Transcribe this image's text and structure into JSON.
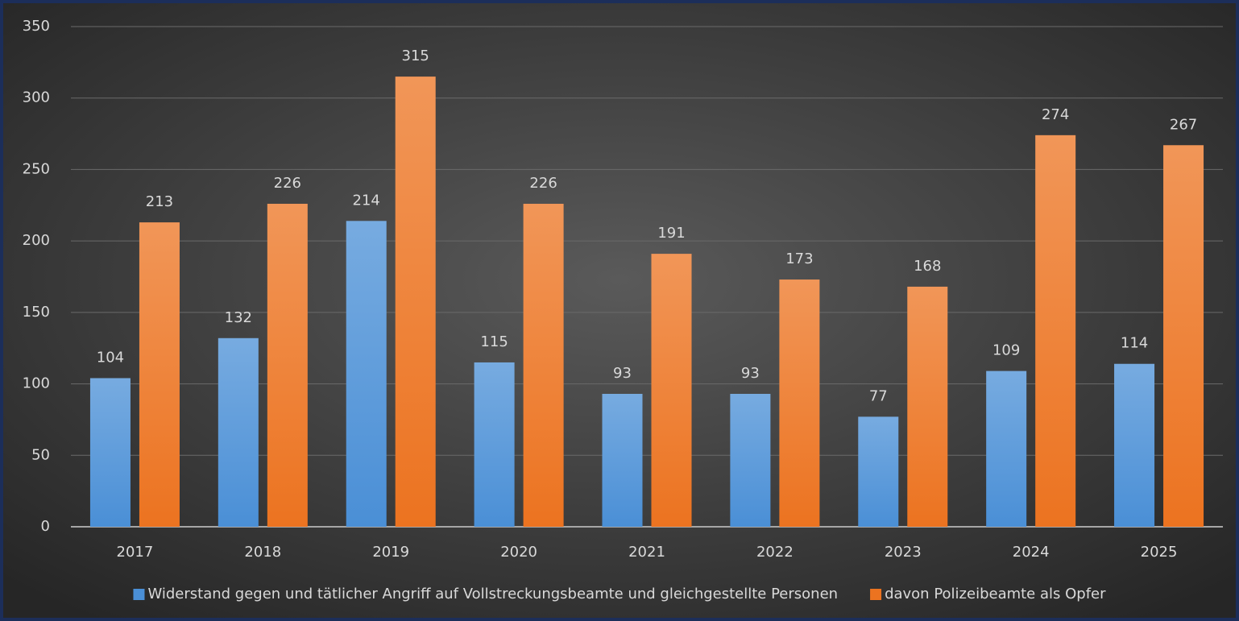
{
  "chart_data": {
    "type": "bar",
    "categories": [
      "2017",
      "2018",
      "2019",
      "2020",
      "2021",
      "2022",
      "2023",
      "2024",
      "2025"
    ],
    "series": [
      {
        "name": "Widerstand gegen und tätlicher Angriff auf Vollstreckungsbeamte und gleichgestellte Personen",
        "color": "#4a8fd6",
        "values": [
          104,
          132,
          214,
          115,
          93,
          93,
          77,
          109,
          114
        ]
      },
      {
        "name": "davon Polizeibeamte als Opfer",
        "color": "#ec7320",
        "values": [
          213,
          226,
          315,
          226,
          191,
          173,
          168,
          274,
          267
        ]
      }
    ],
    "ylim": [
      0,
      350
    ],
    "yticks": [
      0,
      50,
      100,
      150,
      200,
      250,
      300,
      350
    ],
    "grid": true,
    "legend": "bottom"
  }
}
